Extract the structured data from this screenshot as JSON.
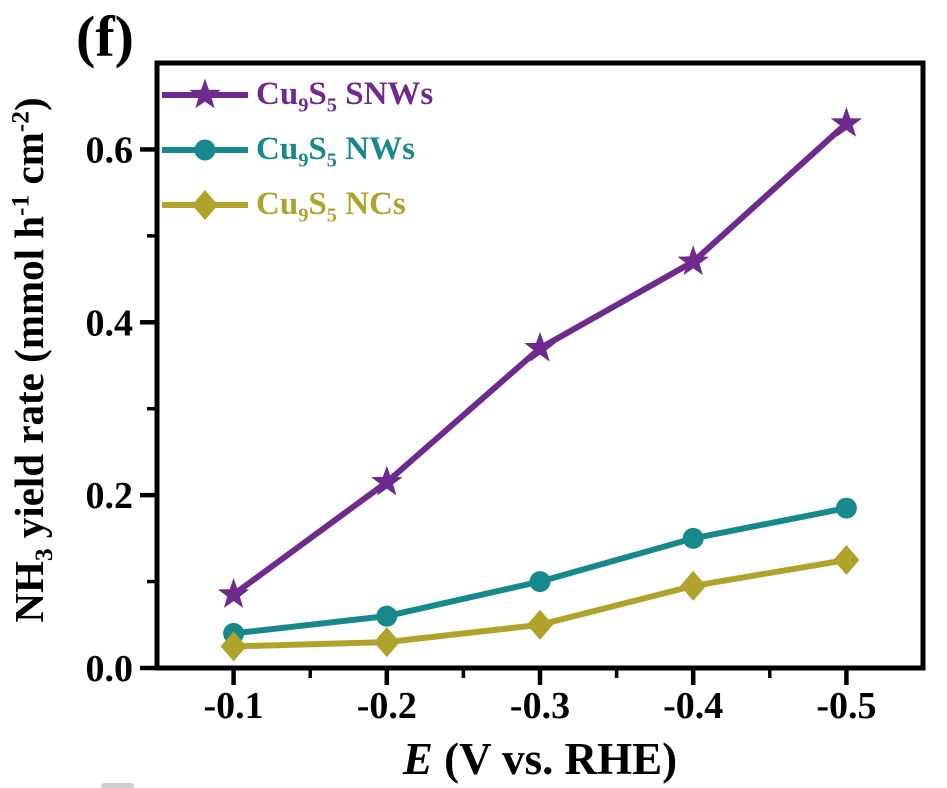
{
  "panel_label": "(f)",
  "axis_labels": {
    "y_html": "NH<sub>3</sub> yield rate (mmol h<sup>-1</sup> cm<sup>-2</sup>)",
    "x_html": "<i>E</i> (V vs. RHE)"
  },
  "colors": {
    "snws_purple": "#6F2A8D",
    "nws_teal": "#17898D",
    "ncs_olive": "#AFA32C",
    "axis_black": "#000000"
  },
  "chart_data": {
    "type": "line",
    "x": [
      -0.1,
      -0.2,
      -0.3,
      -0.4,
      -0.5
    ],
    "series": [
      {
        "name": "Cu9S5 SNWs",
        "label_html": "Cu<sub>9</sub>S<sub>5</sub> SNWs",
        "color": "#6F2A8D",
        "marker": "star",
        "values": [
          0.085,
          0.215,
          0.37,
          0.47,
          0.63
        ]
      },
      {
        "name": "Cu9S5 NWs",
        "label_html": "Cu<sub>9</sub>S<sub>5</sub> NWs",
        "color": "#17898D",
        "marker": "circle",
        "values": [
          0.04,
          0.06,
          0.1,
          0.15,
          0.185
        ]
      },
      {
        "name": "Cu9S5 NCs",
        "label_html": "Cu<sub>9</sub>S<sub>5</sub> NCs",
        "color": "#AFA32C",
        "marker": "diamond",
        "values": [
          0.025,
          0.03,
          0.05,
          0.095,
          0.125
        ]
      }
    ],
    "title": "",
    "xlabel": "E (V vs. RHE)",
    "ylabel": "NH3 yield rate (mmol h-1 cm-2)",
    "xlim": [
      -0.05,
      -0.55
    ],
    "ylim": [
      0,
      0.7
    ],
    "xticks": [
      -0.1,
      -0.2,
      -0.3,
      -0.4,
      -0.5
    ],
    "xtick_labels": [
      "-0.1",
      "-0.2",
      "-0.3",
      "-0.4",
      "-0.5"
    ],
    "yticks": [
      0.0,
      0.2,
      0.4,
      0.6
    ],
    "ytick_labels": [
      "0.0",
      "0.2",
      "0.4",
      "0.6"
    ],
    "x_minor_ticks": [
      -0.15,
      -0.25,
      -0.35,
      -0.45
    ],
    "y_minor_ticks": [
      0.1,
      0.3,
      0.5
    ],
    "grid": false,
    "legend_position": "top-left-inside"
  }
}
